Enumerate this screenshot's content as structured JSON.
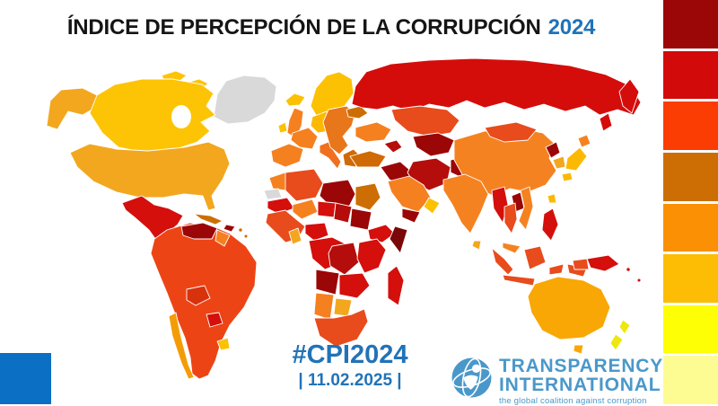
{
  "title": {
    "main": "ÍNDICE DE PERCEPCIÓN DE LA CORRUPCIÓN",
    "year": "2024"
  },
  "footer": {
    "hashtag": "#CPI2024",
    "date": "| 11.02.2025 |"
  },
  "logo": {
    "name1": "TRANSPARENCY",
    "name2": "INTERNATIONAL",
    "tagline": "the global coalition against corruption",
    "globe_icon": "globe-with-figure"
  },
  "colors": {
    "title_text": "#151515",
    "accent_blue": "#2173b8",
    "logo_blue": "#4a98ca",
    "corner_square": "#0b70c3",
    "no_data_gray": "#d9d9d9",
    "border_white": "#ffffff"
  },
  "legend": {
    "position": "right-edge",
    "orientation": "vertical",
    "description": "CPI colour scale, top = lowest score (dark red) to bottom = highest score (pale yellow)",
    "colors": [
      "#9b0606",
      "#d20a0a",
      "#fb3d03",
      "#cc6e04",
      "#fb9005",
      "#fcbd04",
      "#fefe05",
      "#fcfc92"
    ]
  },
  "regions": {
    "greenland": "#d9d9d9",
    "canada": "#fdc405",
    "canada_islands": "#fdc405",
    "alaska": "#f2a71f",
    "usa": "#f2a71f",
    "mexico": "#d40f0c",
    "central_america": "#b50d0b",
    "cuba": "#cc6e04",
    "hispaniola": "#9b0606",
    "caribbean": "#cc6e04",
    "south_america": "#ed4416",
    "venezuela": "#9b0606",
    "guyana": "#f58020",
    "bolivia": "#d8320c",
    "chile": "#f49c05",
    "paraguay": "#d40f0c",
    "uruguay": "#fcc103",
    "iceland": "#fcc103",
    "scandinavia": "#fcc103",
    "uk": "#f58020",
    "ireland": "#fcc103",
    "iberia": "#f58020",
    "france": "#f58020",
    "central_europe": "#fcb904",
    "italy": "#f07020",
    "eastern_europe": "#e8761a",
    "balkans": "#d06a06",
    "ukraine": "#f58020",
    "belarus": "#cc6e04",
    "russia": "#d40d0b",
    "russia_east": "#d40d0b",
    "kazakhstan": "#e84b1c",
    "central_asia": "#9b0606",
    "turkey": "#d06a06",
    "caucasus": "#b50d0b",
    "iraq_syria": "#9b0606",
    "iran": "#b50d0b",
    "afghanistan": "#9b0606",
    "pakistan": "#e84b1c",
    "saudi_arabia": "#f58020",
    "yemen": "#9b0606",
    "oman_uae": "#fcc103",
    "morocco": "#f58020",
    "western_sahara": "#d9d9d9",
    "mauritania": "#d40f0c",
    "algeria": "#e84b1c",
    "libya": "#9b0606",
    "egypt": "#cc6e04",
    "mali": "#f58020",
    "niger": "#d40f0c",
    "chad": "#b50d0b",
    "sudan": "#9b0606",
    "ethiopia": "#d40f0c",
    "somalia": "#7a0808",
    "west_africa": "#e84b1c",
    "ghana": "#f2a71f",
    "nigeria": "#d40f0c",
    "congo": "#d40f0c",
    "drc": "#b50d0b",
    "east_africa": "#d40f0c",
    "angola": "#9b0606",
    "zambezi_belt": "#d40f0c",
    "namibia": "#f58020",
    "botswana": "#f2a71f",
    "south_africa": "#e84b1c",
    "madagascar": "#d40f0c",
    "china": "#f58220",
    "mongolia": "#e84b1c",
    "india": "#f58220",
    "sri_lanka": "#f2a71f",
    "myanmar": "#d40f0c",
    "thailand": "#e84b1c",
    "laos": "#9b0606",
    "vietnam": "#f58220",
    "malaysia": "#f58220",
    "indonesia": "#e84b1c",
    "indonesia_papua": "#e84b1c",
    "philippines": "#d40f0c",
    "north_korea": "#9b0606",
    "south_korea": "#f2a71f",
    "japan": "#fcb904",
    "hokkaido": "#f58220",
    "taiwan": "#fcb904",
    "papua_new_guinea": "#d40f0c",
    "australia": "#f9a705",
    "tasmania": "#f9a705",
    "new_zealand": "#ede80c"
  }
}
